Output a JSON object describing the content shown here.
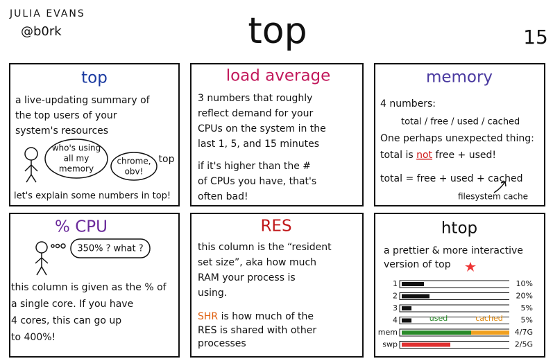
{
  "header": {
    "author": "JULIA EVANS",
    "handle": "@b0rk",
    "title": "top",
    "page": "15"
  },
  "panels": [
    {
      "title": "top",
      "lines": [
        "a live-updating summary of",
        "the top users of your",
        "system's resources"
      ],
      "bubble_1": [
        "who's using",
        "all my",
        "memory"
      ],
      "bubble_2": [
        "chrome,",
        "obv!"
      ],
      "side_label": "top",
      "footer": "let's explain some numbers in top!"
    },
    {
      "title": "load average",
      "lines": [
        "3 numbers that roughly",
        "reflect demand for your",
        "CPUs on the system in the",
        "last 1, 5, and 15 minutes"
      ],
      "lines_2": [
        "if it's higher than the #",
        "of CPUs you have, that's",
        "often bad!"
      ]
    },
    {
      "title": "memory",
      "lines": [
        "4 numbers:",
        "total / free / used / cached",
        "One perhaps unexpected thing:"
      ],
      "emphasis": [
        "total is ",
        "not",
        " free + used!"
      ],
      "formula": "total = free + used + cached",
      "note": "filesystem cache"
    },
    {
      "title": "% CPU",
      "bubble": "350% ? what ?",
      "lines": [
        "this column is given as the % of",
        "a single core. If you have",
        "4 cores, this can go up",
        "to 400%!"
      ]
    },
    {
      "title": "RES",
      "lines": [
        "this column is the “resident",
        "set size”, aka how much",
        "RAM your process is",
        "using."
      ],
      "shr": [
        "SHR",
        " is how much of the"
      ],
      "lines_2": [
        "RES is shared with other",
        "processes"
      ]
    },
    {
      "title": "htop",
      "lines": [
        "a prettier & more interactive",
        "version of top"
      ],
      "rows": [
        [
          "1",
          "10%"
        ],
        [
          "2",
          "20%"
        ],
        [
          "3",
          "5%"
        ],
        [
          "4",
          "5%"
        ],
        [
          "mem",
          "4/7G"
        ],
        [
          "swp",
          "2/5G"
        ]
      ],
      "used": "used",
      "cached": "cached"
    }
  ]
}
